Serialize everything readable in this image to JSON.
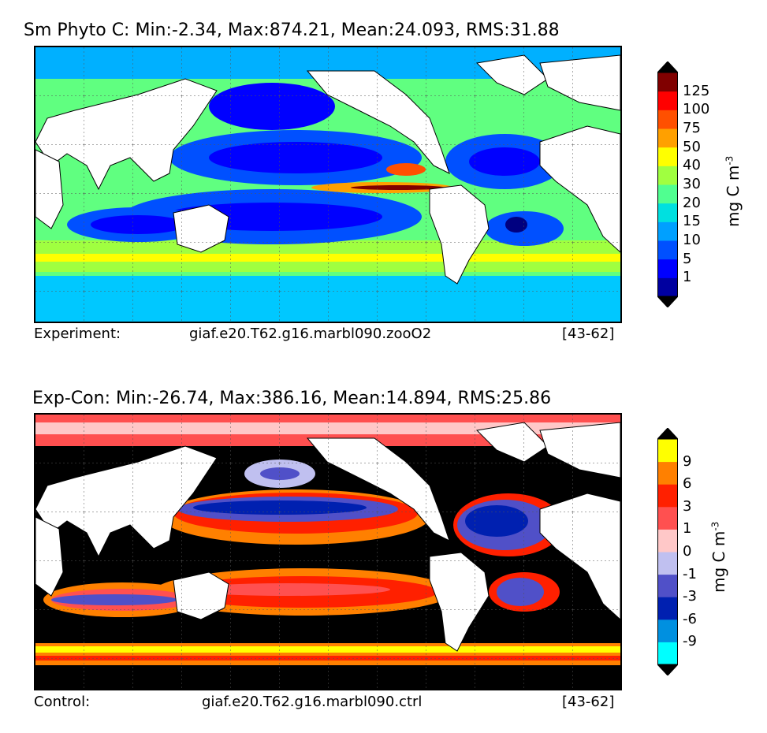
{
  "panels": [
    {
      "title": "Sm Phyto C: Min:-2.34, Max:874.21, Mean:24.093, RMS:31.88",
      "footer": {
        "left": "Experiment:",
        "center": "giaf.e20.T62.g16.marbl090.zooO2",
        "right": "[43-62]"
      },
      "colorbar": {
        "ticks": [
          "125",
          "100",
          "75",
          "50",
          "40",
          "30",
          "20",
          "15",
          "10",
          "5",
          "1"
        ],
        "colors": [
          "#0000a0",
          "#0000ff",
          "#0050ff",
          "#00a0ff",
          "#00e0e0",
          "#50ff90",
          "#a0ff40",
          "#ffff00",
          "#ffa000",
          "#ff5000",
          "#ff0000",
          "#800000"
        ],
        "unit": "mg C m",
        "unit_exp": "-3"
      }
    },
    {
      "title": "Exp-Con: Min:-26.74, Max:386.16, Mean:14.894, RMS:25.86",
      "footer": {
        "left": "Control:",
        "center": "giaf.e20.T62.g16.marbl090.ctrl",
        "right": "[43-62]"
      },
      "colorbar": {
        "ticks": [
          "9",
          "6",
          "3",
          "1",
          "0",
          "-1",
          "-3",
          "-6",
          "-9"
        ],
        "colors": [
          "#00ffff",
          "#0090e0",
          "#0020b0",
          "#5050c8",
          "#c0c0f0",
          "#ffc8c8",
          "#ff5050",
          "#ff2000",
          "#ff8000",
          "#ffff00"
        ],
        "unit": "mg C m",
        "unit_exp": "-3"
      }
    }
  ]
}
